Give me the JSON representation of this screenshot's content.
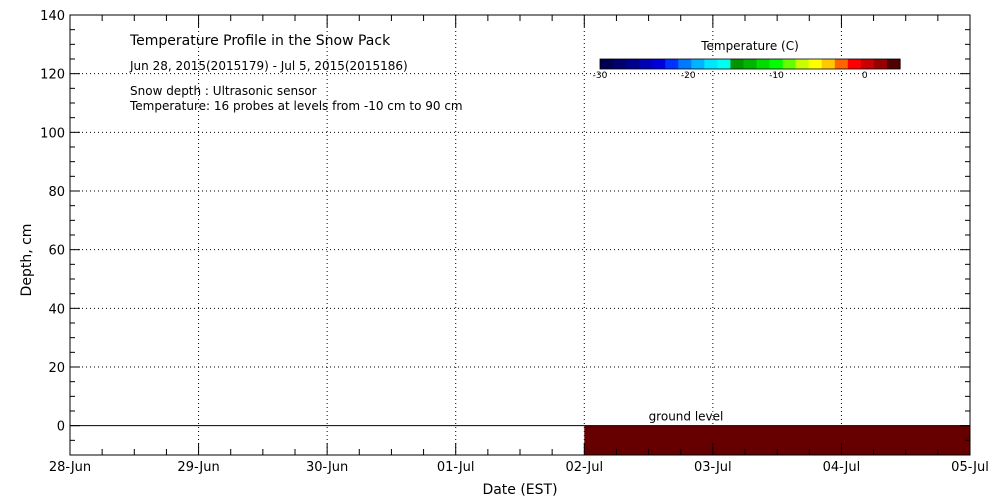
{
  "chart_data": {
    "type": "heatmap",
    "title": "Temperature Profile in the Snow Pack",
    "date_range": "Jun 28, 2015(2015179) - Jul  5, 2015(2015186)",
    "notes": [
      "Snow depth : Ultrasonic sensor",
      "Temperature: 16 probes at levels from -10 cm to 90 cm"
    ],
    "xlabel": "Date (EST)",
    "ylabel": "Depth, cm",
    "x_ticks": [
      "28-Jun",
      "29-Jun",
      "30-Jun",
      "01-Jul",
      "02-Jul",
      "03-Jul",
      "04-Jul",
      "05-Jul"
    ],
    "xlim": [
      0,
      7
    ],
    "y_ticks": [
      0,
      20,
      40,
      60,
      80,
      100,
      120,
      140
    ],
    "ylim": [
      -10,
      140
    ],
    "grid": true,
    "ground_level_label": "ground level",
    "ground_level_depth": 0,
    "colorbar": {
      "title": "Temperature (C)",
      "tick_labels": [
        "-30",
        "-20",
        "-10",
        "0"
      ],
      "tick_values": [
        -30,
        -20,
        -10,
        0
      ],
      "range": [
        -30,
        4
      ],
      "colors": [
        "#000050",
        "#00006e",
        "#00008c",
        "#0000b4",
        "#0000dc",
        "#0032ff",
        "#0078ff",
        "#00b4ff",
        "#00e6ff",
        "#00fff0",
        "#009600",
        "#00b400",
        "#00dc00",
        "#00ff00",
        "#64ff00",
        "#c8ff00",
        "#ffff00",
        "#ffc800",
        "#ff6400",
        "#ff0000",
        "#c80000",
        "#960000",
        "#500000"
      ]
    },
    "filled_regions": [
      {
        "x_start": 4.0,
        "x_end": 7.0,
        "y_start": -10,
        "y_end": 0,
        "color": "#660000"
      }
    ]
  }
}
